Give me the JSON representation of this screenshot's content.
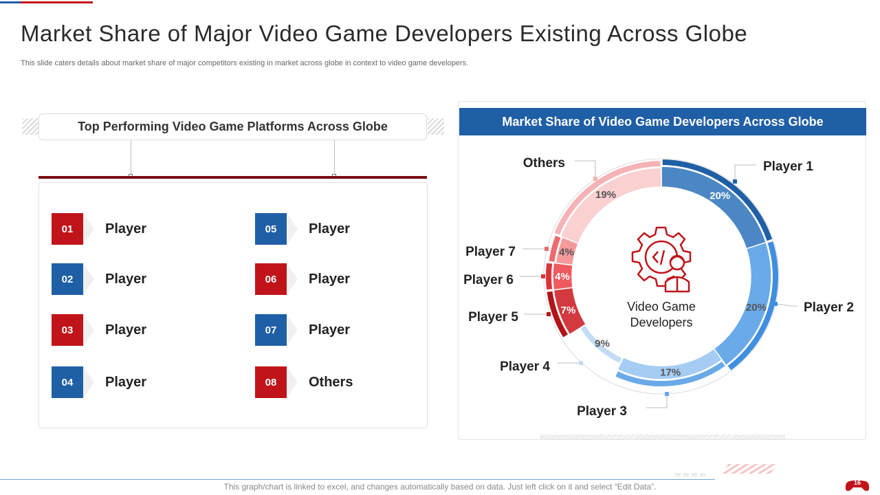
{
  "slide": {
    "title": "Market Share of Major Video Game Developers Existing Across Globe",
    "subtitle": "This slide caters details about market share of major competitors existing in market across globe in context to video game developers.",
    "footer_note": "This graph/chart is linked to excel, and changes automatically based on data. Just left click on it and select “Edit Data”.",
    "page_number": "16"
  },
  "left": {
    "header": "Top Performing Video Game Platforms Across Globe",
    "items": [
      {
        "num": "01",
        "label": "Player",
        "color": "#c0141a"
      },
      {
        "num": "02",
        "label": "Player",
        "color": "#1f5fa6"
      },
      {
        "num": "03",
        "label": "Player",
        "color": "#c0141a"
      },
      {
        "num": "04",
        "label": "Player",
        "color": "#1f5fa6"
      },
      {
        "num": "05",
        "label": "Player",
        "color": "#1f5fa6"
      },
      {
        "num": "06",
        "label": "Player",
        "color": "#c0141a"
      },
      {
        "num": "07",
        "label": "Player",
        "color": "#1f5fa6"
      },
      {
        "num": "08",
        "label": "Others",
        "color": "#c0141a"
      }
    ]
  },
  "right": {
    "header": "Market Share of Video Game Developers Across Globe",
    "center_label_line1": "Video Game",
    "center_label_line2": "Developers",
    "center_icon": "gear-code-developer-icon"
  },
  "chart_data": {
    "type": "pie",
    "style": "donut",
    "title": "Market Share of Video Game Developers Across Globe",
    "unit": "%",
    "slices": [
      {
        "label": "Player 1",
        "value": 20,
        "display": "20%",
        "color": "#4a87c4",
        "stroke": "#1f5fa6",
        "text_color": "#ffffff"
      },
      {
        "label": "Player 2",
        "value": 20,
        "display": "20%",
        "color": "#6aaae8",
        "stroke": "#3f8ee0",
        "text_color": "#555555"
      },
      {
        "label": "Player 3",
        "value": 17,
        "display": "17%",
        "color": "#a5cdf3",
        "stroke": "#6aaae8",
        "text_color": "#555555"
      },
      {
        "label": "Player 4",
        "value": 9,
        "display": "9%",
        "color": "#d6e8f9",
        "stroke": "#c4ddf4",
        "text_color": "#555555"
      },
      {
        "label": "Player 5",
        "value": 7,
        "display": "7%",
        "color": "#d23a3f",
        "stroke": "#b01419",
        "text_color": "#ffffff"
      },
      {
        "label": "Player 6",
        "value": 4,
        "display": "4%",
        "color": "#ee5a5e",
        "stroke": "#d8343a",
        "text_color": "#ffffff"
      },
      {
        "label": "Player 7",
        "value": 4,
        "display": "4%",
        "color": "#f59a9c",
        "stroke": "#ee6a6e",
        "text_color": "#555555"
      },
      {
        "label": "Others",
        "value": 19,
        "display": "19%",
        "color": "#fbd0d1",
        "stroke": "#f5b3b5",
        "text_color": "#555555"
      }
    ]
  }
}
